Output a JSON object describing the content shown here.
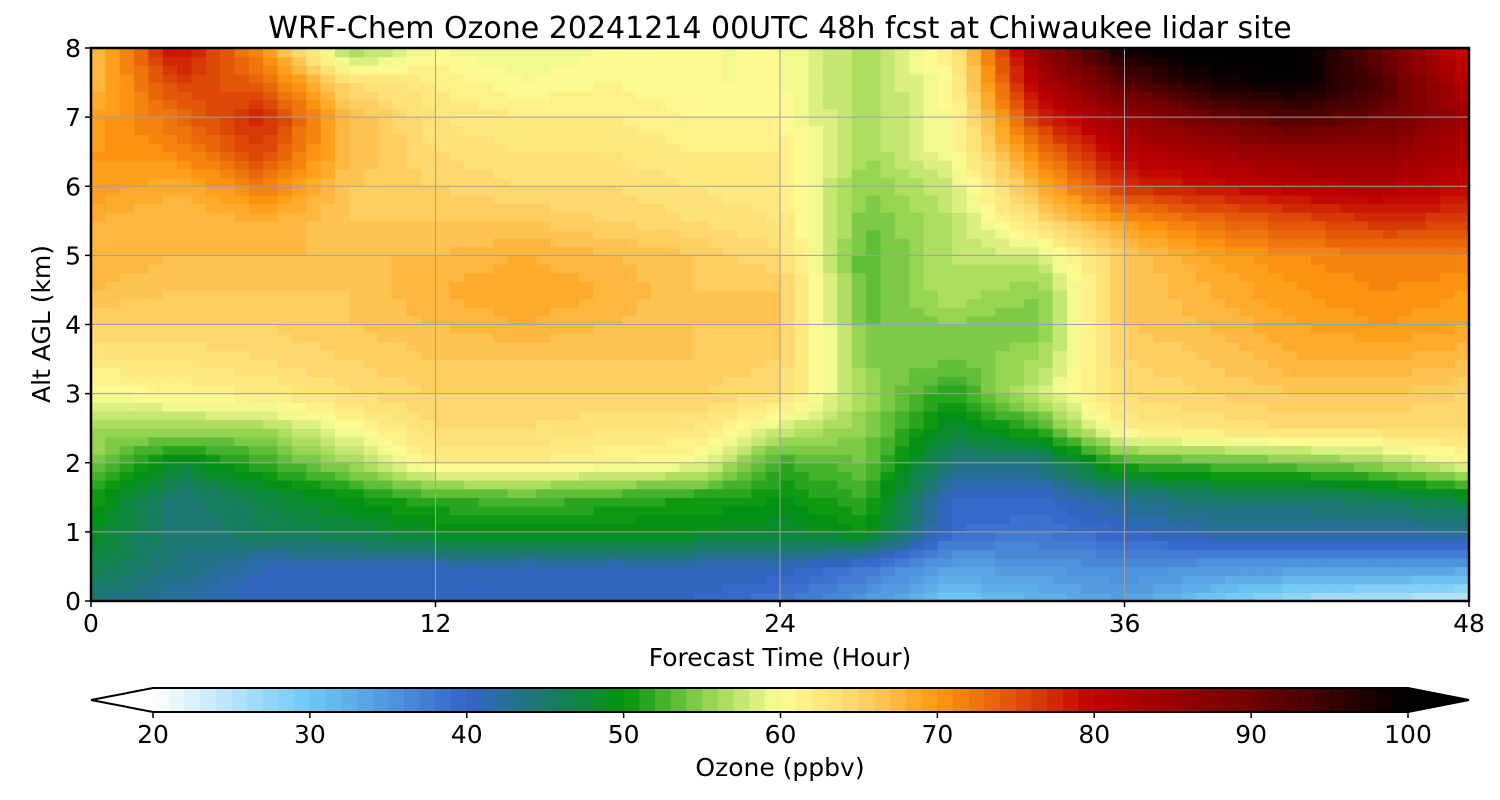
{
  "chart_data": {
    "type": "heatmap",
    "title": "WRF-Chem Ozone  20241214 00UTC 48h fcst at Chiwaukee lidar site",
    "xlabel": "Forecast Time (Hour)",
    "ylabel": "Alt AGL (km)",
    "xlim": [
      0,
      48
    ],
    "ylim": [
      0,
      8
    ],
    "xticks": [
      0,
      12,
      24,
      36,
      48
    ],
    "yticks": [
      0,
      1,
      2,
      3,
      4,
      5,
      6,
      7,
      8
    ],
    "grid": true,
    "x_hours": [
      0,
      3,
      6,
      9,
      12,
      15,
      18,
      21,
      24,
      27,
      30,
      33,
      36,
      39,
      42,
      45,
      48
    ],
    "z_km": [
      0,
      0.5,
      1,
      1.5,
      2,
      2.5,
      3,
      3.5,
      4,
      4.5,
      5,
      5.5,
      6,
      6.5,
      7,
      7.5,
      8
    ],
    "ozone_ppbv": [
      [
        44,
        42,
        40,
        40,
        40,
        40,
        40,
        40,
        38,
        35,
        30,
        32,
        34,
        30,
        26,
        25,
        24
      ],
      [
        47,
        44,
        41,
        41,
        41,
        41,
        41,
        41,
        41,
        38,
        34,
        35,
        36,
        35,
        35,
        35,
        34
      ],
      [
        49,
        44,
        46,
        47,
        49,
        49,
        49,
        49,
        48,
        50,
        39,
        38,
        40,
        42,
        42,
        42,
        43
      ],
      [
        51,
        44,
        47,
        50,
        52,
        53,
        52,
        51,
        50,
        52,
        40,
        40,
        43,
        45,
        45,
        46,
        48
      ],
      [
        55,
        48,
        52,
        56,
        62,
        62,
        61,
        60,
        52,
        54,
        44,
        44,
        52,
        53,
        54,
        56,
        60
      ],
      [
        56,
        56,
        56,
        60,
        64,
        64,
        63,
        63,
        58,
        55,
        48,
        52,
        62,
        63,
        64,
        64,
        64
      ],
      [
        60,
        61,
        62,
        64,
        65,
        65,
        65,
        65,
        64,
        56,
        51,
        58,
        64,
        65,
        66,
        66,
        65
      ],
      [
        63,
        63,
        64,
        65,
        66,
        66,
        66,
        66,
        65,
        55,
        54,
        56,
        65,
        66,
        68,
        68,
        67
      ],
      [
        65,
        65,
        65,
        66,
        67,
        68,
        67,
        66,
        66,
        54,
        55,
        54,
        66,
        67,
        69,
        70,
        69
      ],
      [
        67,
        66,
        66,
        66,
        68,
        69,
        68,
        66,
        66,
        53,
        57,
        55,
        66,
        68,
        70,
        71,
        70
      ],
      [
        68,
        67,
        67,
        67,
        67,
        68,
        67,
        66,
        64,
        53,
        57,
        58,
        66,
        69,
        71,
        72,
        72
      ],
      [
        68,
        67,
        68,
        66,
        66,
        66,
        65,
        64,
        63,
        54,
        57,
        64,
        70,
        73,
        75,
        77,
        76
      ],
      [
        70,
        68,
        72,
        66,
        65,
        64,
        64,
        63,
        62,
        55,
        58,
        68,
        77,
        79,
        81,
        82,
        80
      ],
      [
        70,
        71,
        76,
        67,
        64,
        63,
        63,
        62,
        62,
        56,
        60,
        72,
        81,
        84,
        86,
        86,
        82
      ],
      [
        69,
        73,
        78,
        67,
        63,
        62,
        62,
        61,
        61,
        56,
        60,
        77,
        85,
        90,
        93,
        90,
        84
      ],
      [
        67,
        76,
        74,
        64,
        62,
        60,
        61,
        60,
        60,
        56,
        61,
        82,
        92,
        98,
        100,
        93,
        81
      ],
      [
        66,
        80,
        70,
        55,
        60,
        59,
        60,
        60,
        60,
        56,
        62,
        86,
        99,
        101,
        101,
        90,
        78
      ]
    ],
    "colorbar": {
      "label": "Ozone  (ppbv)",
      "min": 20,
      "max": 100,
      "step": 1,
      "ticks": [
        20,
        30,
        40,
        50,
        60,
        70,
        80,
        90,
        100
      ],
      "extend": "both",
      "extend_low_color": "#ffffff",
      "extend_high_color": "#000000",
      "stops": [
        {
          "value": 20,
          "color": "#ffffff"
        },
        {
          "value": 30,
          "color": "#6ec8f4"
        },
        {
          "value": 40,
          "color": "#3464c8"
        },
        {
          "value": 45,
          "color": "#1a7a6a"
        },
        {
          "value": 50,
          "color": "#00930c"
        },
        {
          "value": 55,
          "color": "#8ad04c"
        },
        {
          "value": 60,
          "color": "#fefe96"
        },
        {
          "value": 65,
          "color": "#fed46a"
        },
        {
          "value": 70,
          "color": "#fe9a12"
        },
        {
          "value": 75,
          "color": "#e05008"
        },
        {
          "value": 80,
          "color": "#c00000"
        },
        {
          "value": 90,
          "color": "#700000"
        },
        {
          "value": 100,
          "color": "#000000"
        }
      ]
    }
  }
}
